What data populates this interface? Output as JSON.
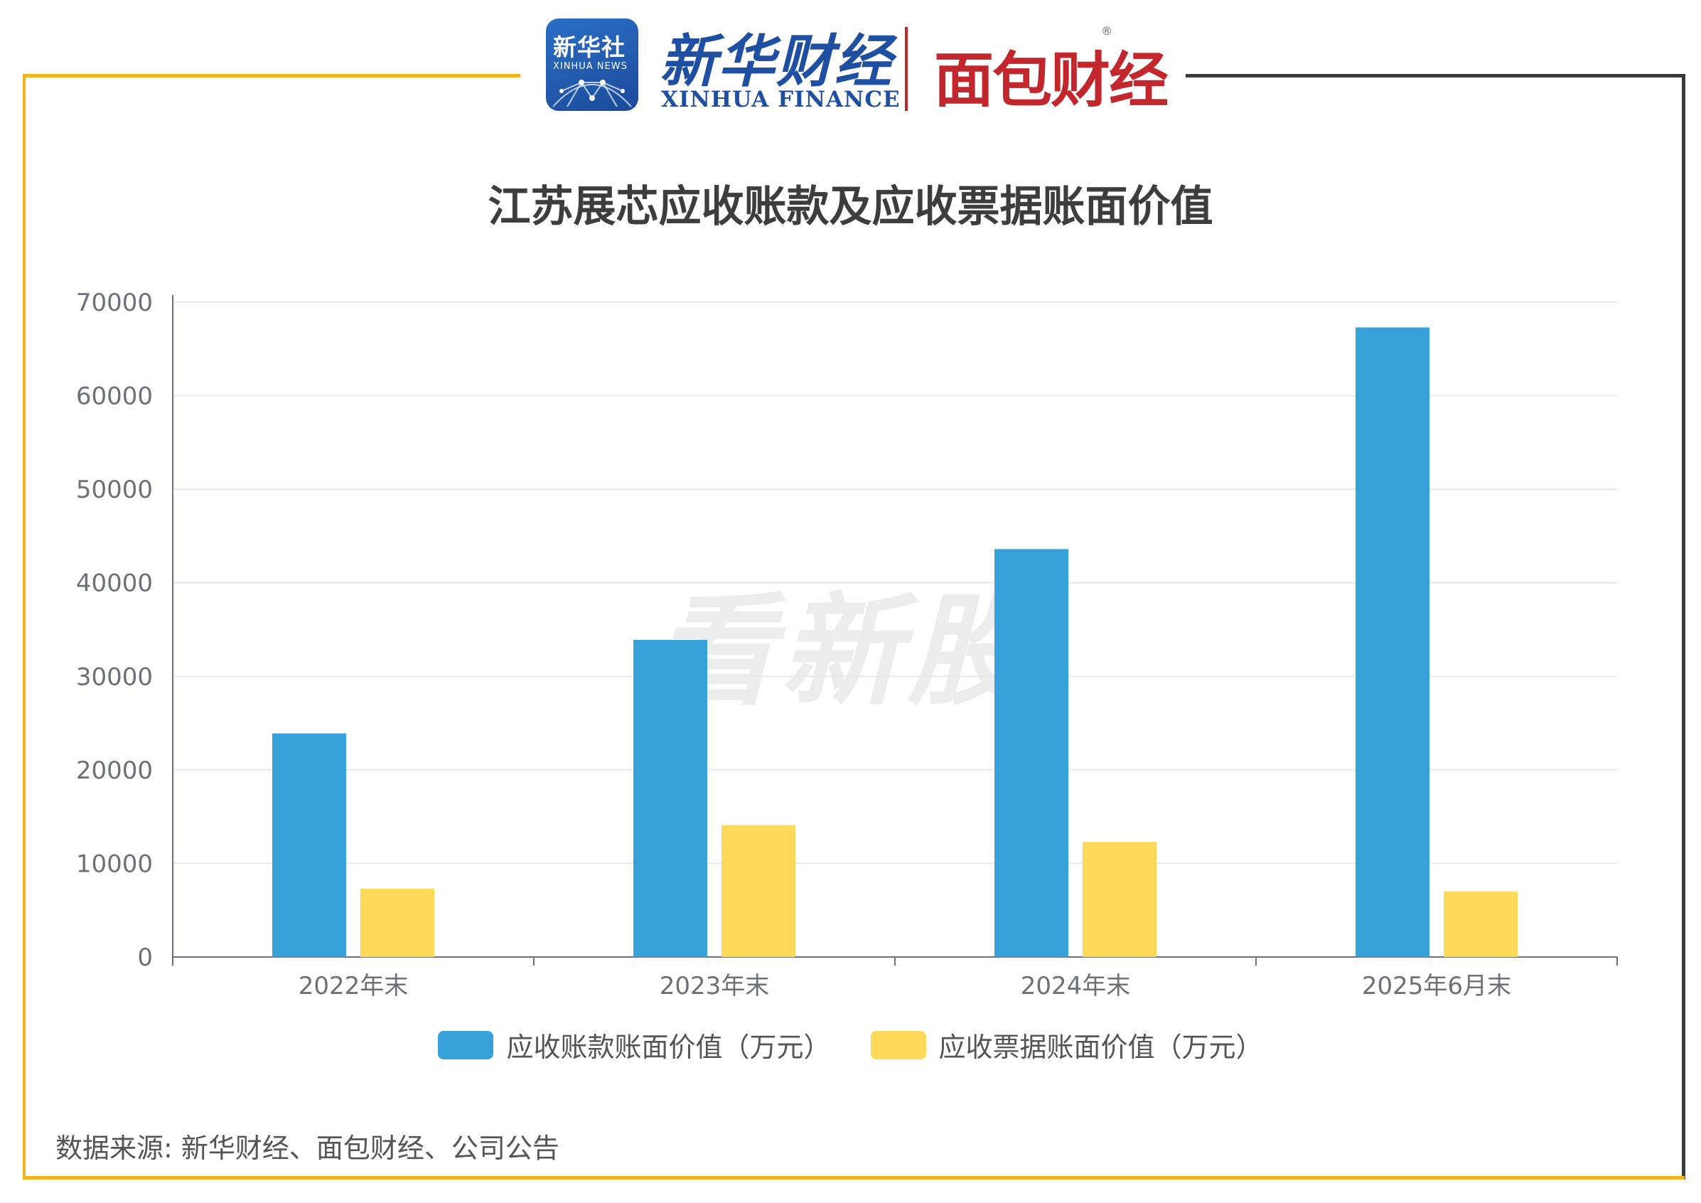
{
  "header": {
    "xinhua_badge_cn": "新华社",
    "xinhua_badge_en": "XINHUA NEWS",
    "xinhua_finance_cn": "新华财经",
    "xinhua_finance_en": "XINHUA FINANCE",
    "mianbao_logo": "面包财经",
    "registered_mark": "®"
  },
  "watermark": "看新股",
  "source": "数据来源: 新华财经、面包财经、公司公告",
  "chart_data": {
    "type": "bar",
    "title": "江苏展芯应收账款及应收票据账面价值",
    "xlabel": "",
    "ylabel": "",
    "categories": [
      "2022年末",
      "2023年末",
      "2024年末",
      "2025年6月末"
    ],
    "series": [
      {
        "name": "应收账款账面价值（万元）",
        "values": [
          23900,
          33900,
          43600,
          67300
        ],
        "color": "#37a2da"
      },
      {
        "name": "应收票据账面价值（万元）",
        "values": [
          7300,
          14100,
          12300,
          7000
        ],
        "color": "#ffd95a"
      }
    ],
    "ylim": [
      0,
      70000
    ],
    "yticks": [
      "0",
      "10000",
      "20000",
      "30000",
      "40000",
      "50000",
      "60000",
      "70000"
    ],
    "grid": true,
    "legend_position": "bottom"
  }
}
